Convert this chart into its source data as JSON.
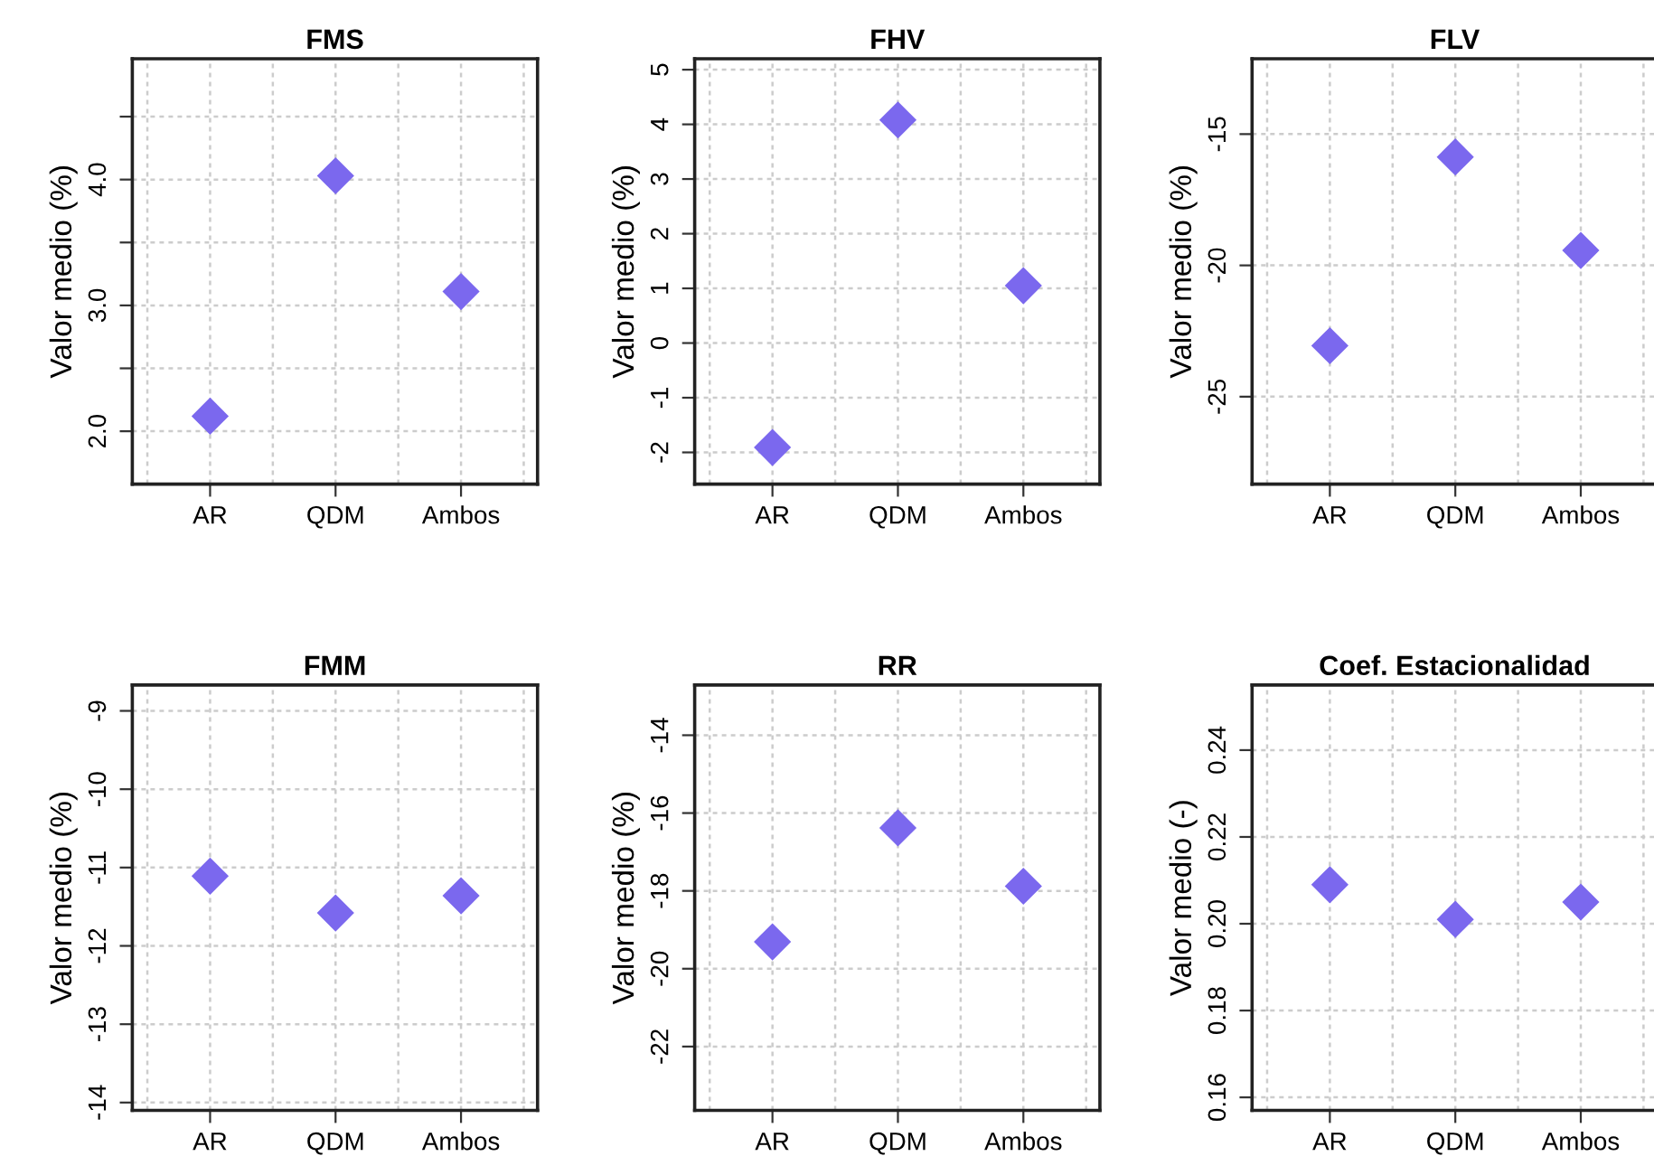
{
  "chart_data": [
    {
      "type": "scatter",
      "title": "FMS",
      "ylabel": "Valor medio (%)",
      "categories": [
        "AR",
        "QDM",
        "Ambos"
      ],
      "values": [
        2.12,
        4.03,
        3.11
      ],
      "color": "#7b68ee",
      "marker": "diamond",
      "grid": true,
      "ylim": [
        1.58,
        4.96
      ],
      "yticks": [
        {
          "value": 2.0,
          "label": "2.0"
        },
        {
          "value": 2.5,
          "label": null
        },
        {
          "value": 3.0,
          "label": "3.0"
        },
        {
          "value": 3.5,
          "label": null
        },
        {
          "value": 4.0,
          "label": "4.0"
        },
        {
          "value": 4.5,
          "label": null
        }
      ]
    },
    {
      "type": "scatter",
      "title": "FHV",
      "ylabel": "Valor medio (%)",
      "categories": [
        "AR",
        "QDM",
        "Ambos"
      ],
      "values": [
        -1.91,
        4.08,
        1.05
      ],
      "color": "#7b68ee",
      "marker": "diamond",
      "grid": true,
      "ylim": [
        -2.58,
        5.2
      ],
      "yticks": [
        -2,
        -1,
        0,
        1,
        2,
        3,
        4,
        5
      ]
    },
    {
      "type": "scatter",
      "title": "FLV",
      "ylabel": "Valor medio (%)",
      "categories": [
        "AR",
        "QDM",
        "Ambos"
      ],
      "values": [
        -23.06,
        -15.87,
        -19.43
      ],
      "color": "#7b68ee",
      "marker": "diamond",
      "grid": true,
      "ylim": [
        -28.33,
        -12.13
      ],
      "yticks": [
        -25,
        -20,
        -15
      ]
    },
    {
      "type": "scatter",
      "title": "FMM",
      "ylabel": "Valor medio (%)",
      "categories": [
        "AR",
        "QDM",
        "Ambos"
      ],
      "values": [
        -11.11,
        -11.58,
        -11.36
      ],
      "color": "#7b68ee",
      "marker": "diamond",
      "grid": true,
      "ylim": [
        -14.1,
        -8.67
      ],
      "yticks": [
        -14,
        -13,
        -12,
        -11,
        -10,
        -9
      ]
    },
    {
      "type": "scatter",
      "title": "RR",
      "ylabel": "Valor medio (%)",
      "categories": [
        "AR",
        "QDM",
        "Ambos"
      ],
      "values": [
        -19.31,
        -16.38,
        -17.88
      ],
      "color": "#7b68ee",
      "marker": "diamond",
      "grid": true,
      "ylim": [
        -23.64,
        -12.71
      ],
      "yticks": [
        -22,
        -20,
        -18,
        -16,
        -14
      ]
    },
    {
      "type": "scatter",
      "title": "Coef. Estacionalidad",
      "ylabel": "Valor medio (-)",
      "categories": [
        "AR",
        "QDM",
        "Ambos"
      ],
      "values": [
        0.209,
        0.201,
        0.205
      ],
      "color": "#7b68ee",
      "marker": "diamond",
      "grid": true,
      "ylim": [
        0.157,
        0.255
      ],
      "yticks": [
        {
          "value": 0.16,
          "label": "0.16"
        },
        {
          "value": 0.18,
          "label": "0.18"
        },
        {
          "value": 0.2,
          "label": "0.20"
        },
        {
          "value": 0.22,
          "label": "0.22"
        },
        {
          "value": 0.24,
          "label": "0.24"
        }
      ]
    }
  ]
}
